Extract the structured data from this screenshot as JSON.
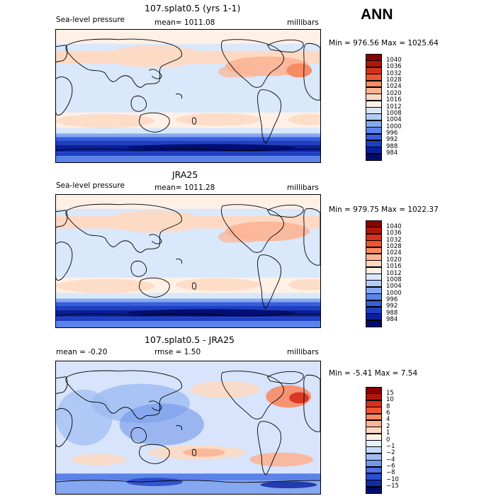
{
  "season": "ANN",
  "panels": [
    {
      "title": "107.splat0.5 (yrs 1-1)",
      "left_label": "Sea-level pressure",
      "center_label": "mean= 1011.08",
      "right_label": "millibars",
      "minmax": "Min = 976.56 Max = 1025.64",
      "colorbar": {
        "labels": [
          "1040",
          "1036",
          "1032",
          "1028",
          "1024",
          "1020",
          "1016",
          "1012",
          "1008",
          "1004",
          "1000",
          "996",
          "992",
          "988",
          "984"
        ],
        "colors": [
          "#8b0000",
          "#b2150c",
          "#d7301f",
          "#ef5533",
          "#f88a64",
          "#fcb494",
          "#fdd9c4",
          "#fff0e6",
          "#d9e8fb",
          "#b3ccf7",
          "#86a8f0",
          "#5b82e8",
          "#3a5fdc",
          "#1e3fc2",
          "#0a1f9a",
          "#000c6e"
        ]
      }
    },
    {
      "title": "JRA25",
      "left_label": "Sea-level pressure",
      "center_label": "mean= 1011.28",
      "right_label": "millibars",
      "minmax": "Min = 979.75 Max = 1022.37",
      "colorbar": {
        "labels": [
          "1040",
          "1036",
          "1032",
          "1028",
          "1024",
          "1020",
          "1016",
          "1012",
          "1008",
          "1004",
          "1000",
          "996",
          "992",
          "988",
          "984"
        ],
        "colors": [
          "#8b0000",
          "#b2150c",
          "#d7301f",
          "#ef5533",
          "#f88a64",
          "#fcb494",
          "#fdd9c4",
          "#fff0e6",
          "#d9e8fb",
          "#b3ccf7",
          "#86a8f0",
          "#5b82e8",
          "#3a5fdc",
          "#1e3fc2",
          "#0a1f9a",
          "#000c6e"
        ]
      }
    },
    {
      "title": "107.splat0.5 - JRA25",
      "left_label": "mean =   -0.20",
      "center_label": "rmse =    1.50",
      "right_label": "millibars",
      "minmax": "Min =  -5.41 Max =   7.54",
      "colorbar": {
        "labels": [
          "15",
          "10",
          "8",
          "6",
          "4",
          "2",
          "1",
          "0",
          "−1",
          "−2",
          "−4",
          "−6",
          "−8",
          "−10",
          "−15"
        ],
        "colors": [
          "#8b0000",
          "#b2150c",
          "#d7301f",
          "#ef5533",
          "#f88a64",
          "#fcb494",
          "#fdd9c4",
          "#fff0e6",
          "#e6effc",
          "#c7d9f8",
          "#9ebcf2",
          "#7396ea",
          "#4e70e0",
          "#2a4fcf",
          "#0f2ca6",
          "#000c6e"
        ]
      }
    }
  ]
}
